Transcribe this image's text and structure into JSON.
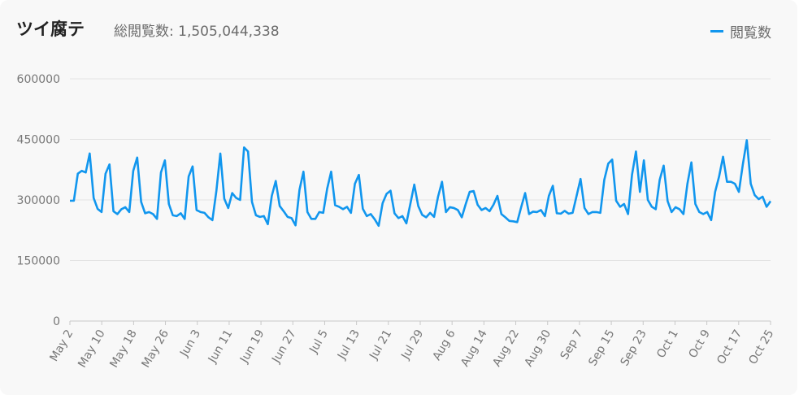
{
  "header": {
    "title": "ツイ腐テ",
    "subtitle_label": "総閲覧数:",
    "subtitle_value": "1,505,044,338"
  },
  "colors": {
    "line": "#1196ee",
    "grid": "#e3e3e3",
    "text": "#777777",
    "background": "#f8f8f8"
  },
  "chart_data": {
    "type": "line",
    "title": "ツイ腐テ",
    "xlabel": "",
    "ylabel": "",
    "ylim": [
      0,
      600000
    ],
    "grid": true,
    "legend_position": "top-right",
    "y_ticks": [
      "0",
      "150000",
      "300000",
      "450000",
      "600000"
    ],
    "x_ticks": [
      "May 2",
      "May 10",
      "May 18",
      "May 26",
      "Jun 3",
      "Jun 11",
      "Jun 19",
      "Jun 27",
      "Jul 5",
      "Jul 13",
      "Jul 21",
      "Jul 29",
      "Aug 6",
      "Aug 14",
      "Aug 22",
      "Aug 30",
      "Sep 7",
      "Sep 15",
      "Sep 23",
      "Oct 1",
      "Oct 9",
      "Oct 17",
      "Oct 25"
    ],
    "series": [
      {
        "name": "閲覧数",
        "values": [
          298000,
          298000,
          365000,
          372000,
          368000,
          415000,
          305000,
          278000,
          270000,
          365000,
          388000,
          272000,
          265000,
          277000,
          282000,
          270000,
          372000,
          405000,
          295000,
          267000,
          270000,
          265000,
          253000,
          368000,
          398000,
          290000,
          262000,
          260000,
          267000,
          253000,
          358000,
          383000,
          275000,
          270000,
          268000,
          257000,
          250000,
          322000,
          415000,
          303000,
          280000,
          317000,
          305000,
          300000,
          430000,
          420000,
          295000,
          262000,
          258000,
          260000,
          240000,
          310000,
          347000,
          285000,
          272000,
          258000,
          255000,
          237000,
          325000,
          370000,
          270000,
          253000,
          253000,
          270000,
          268000,
          328000,
          370000,
          287000,
          283000,
          277000,
          283000,
          268000,
          340000,
          362000,
          278000,
          260000,
          265000,
          252000,
          236000,
          292000,
          315000,
          323000,
          267000,
          255000,
          260000,
          242000,
          290000,
          338000,
          285000,
          263000,
          257000,
          268000,
          258000,
          308000,
          345000,
          270000,
          282000,
          280000,
          275000,
          257000,
          290000,
          320000,
          322000,
          288000,
          275000,
          280000,
          272000,
          288000,
          310000,
          265000,
          257000,
          248000,
          247000,
          245000,
          282000,
          317000,
          265000,
          271000,
          270000,
          275000,
          260000,
          310000,
          335000,
          267000,
          266000,
          273000,
          266000,
          268000,
          310000,
          352000,
          280000,
          265000,
          270000,
          270000,
          268000,
          350000,
          390000,
          400000,
          298000,
          283000,
          290000,
          265000,
          362000,
          420000,
          320000,
          398000,
          300000,
          283000,
          277000,
          350000,
          385000,
          297000,
          270000,
          282000,
          277000,
          265000,
          340000,
          393000,
          290000,
          270000,
          265000,
          270000,
          250000,
          320000,
          358000,
          407000,
          345000,
          345000,
          340000,
          320000,
          388000,
          448000,
          340000,
          312000,
          302000,
          308000,
          283000,
          297000
        ]
      }
    ]
  }
}
